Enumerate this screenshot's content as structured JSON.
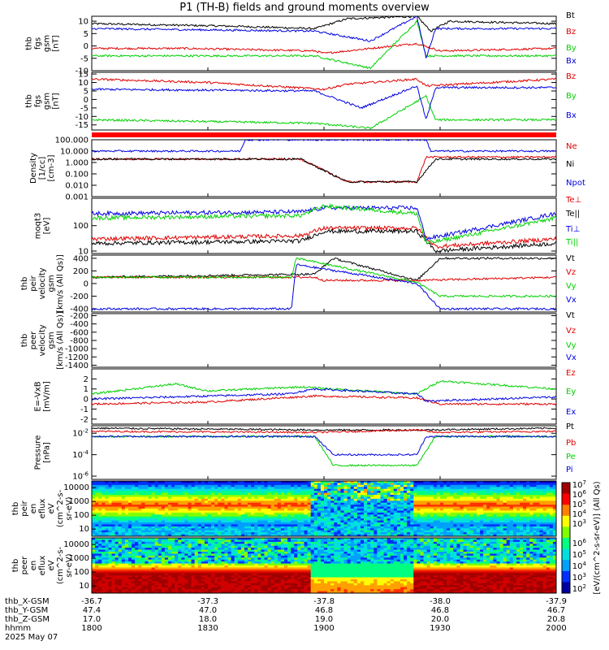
{
  "title": "P1 (TH-B) fields and ground moments overview",
  "date_label": "2025 May 07",
  "colors": {
    "black": "#000000",
    "red": "#e00000",
    "green": "#00d000",
    "blue": "#0000e0",
    "divider": "#ff0000"
  },
  "chart_data": [
    {
      "type": "line",
      "id": "fgs",
      "ylabel": [
        "thb",
        "fgs",
        "gsm",
        "[nT]"
      ],
      "ylim": [
        -10,
        12
      ],
      "yticks": [
        "10",
        "5",
        "0",
        "-5",
        "-10"
      ],
      "legend": [
        "Bt",
        "Bz",
        "By",
        "Bx"
      ],
      "series": [
        {
          "name": "Bt",
          "color": "black",
          "x": [
            0,
            0.3,
            0.48,
            0.55,
            0.7,
            0.73,
            0.77,
            1
          ],
          "values": [
            9,
            8,
            7,
            11,
            12,
            6,
            10,
            9
          ]
        },
        {
          "name": "Bz",
          "color": "red",
          "x": [
            0,
            0.2,
            0.48,
            0.5,
            0.7,
            0.75,
            1
          ],
          "values": [
            -1,
            -1,
            -2,
            -3,
            1,
            -2,
            -1
          ]
        },
        {
          "name": "By",
          "color": "green",
          "x": [
            0,
            0.48,
            0.6,
            0.7,
            0.72,
            1
          ],
          "values": [
            -4,
            -4,
            -9,
            10,
            -4,
            -4
          ]
        },
        {
          "name": "Bx",
          "color": "blue",
          "x": [
            0,
            0.48,
            0.6,
            0.7,
            0.72,
            0.74,
            1
          ],
          "values": [
            7,
            6,
            2,
            12,
            -5,
            7,
            7
          ]
        }
      ]
    },
    {
      "type": "line",
      "id": "fgs-noBt",
      "ylabel": [
        "thb",
        "fgs",
        "gsm",
        "[nT]"
      ],
      "ylim": [
        -18,
        16
      ],
      "yticks": [
        "15",
        "10",
        "5",
        "0",
        "-5",
        "-10",
        "-15"
      ],
      "legend": [
        "Bz",
        "By",
        "Bx"
      ],
      "series": [
        {
          "name": "Bz",
          "color": "red",
          "x": [
            0,
            0.25,
            0.5,
            0.55,
            0.7,
            0.72,
            1
          ],
          "values": [
            12,
            10,
            6,
            9,
            12,
            8,
            12
          ]
        },
        {
          "name": "By",
          "color": "green",
          "x": [
            0,
            0.48,
            0.6,
            0.72,
            0.74,
            1
          ],
          "values": [
            -12,
            -14,
            -17,
            2,
            -12,
            -12
          ]
        },
        {
          "name": "Bx",
          "color": "blue",
          "x": [
            0,
            0.48,
            0.58,
            0.7,
            0.72,
            0.74,
            1
          ],
          "values": [
            6,
            5,
            -5,
            8,
            -12,
            7,
            7
          ]
        }
      ]
    },
    {
      "type": "line",
      "id": "density",
      "ylabel": [
        "Density",
        "[1/cc]",
        "[cm-3]"
      ],
      "scale": "log",
      "ylim": [
        0.001,
        100
      ],
      "yticks": [
        "100.000",
        "10.000",
        "1.000",
        "0.100",
        "0.010",
        "0.001"
      ],
      "legend": [
        "Ne",
        "Ni",
        "Npot"
      ],
      "series": [
        {
          "name": "Ne",
          "color": "red",
          "x": [
            0,
            0.45,
            0.55,
            0.7,
            0.72,
            1
          ],
          "values": [
            2,
            2,
            0.02,
            0.02,
            3,
            3
          ]
        },
        {
          "name": "Ni",
          "color": "black",
          "x": [
            0,
            0.45,
            0.55,
            0.7,
            0.74,
            1
          ],
          "values": [
            2,
            2,
            0.02,
            0.02,
            2,
            2
          ]
        },
        {
          "name": "Npot",
          "color": "blue",
          "x": [
            0,
            0.32,
            0.33,
            0.72,
            0.73,
            1
          ],
          "values": [
            10,
            10,
            100,
            100,
            10,
            10
          ]
        }
      ]
    },
    {
      "type": "line",
      "id": "temperature",
      "ylabel": [
        "moqt3",
        "[eV]"
      ],
      "scale": "log",
      "ylim": [
        8,
        1200
      ],
      "yticks": [
        "100",
        "10"
      ],
      "legend": [
        "Te⊥",
        "Te||",
        "Ti⊥",
        "Ti||"
      ],
      "series": [
        {
          "name": "Te⊥",
          "color": "red",
          "x": [
            0,
            0.45,
            0.5,
            0.7,
            0.74,
            1
          ],
          "values": [
            30,
            40,
            80,
            80,
            15,
            30
          ]
        },
        {
          "name": "Te||",
          "color": "black",
          "x": [
            0,
            0.45,
            0.5,
            0.7,
            0.74,
            1
          ],
          "values": [
            20,
            25,
            60,
            60,
            10,
            20
          ]
        },
        {
          "name": "Ti⊥",
          "color": "blue",
          "x": [
            0,
            0.45,
            0.5,
            0.7,
            0.72,
            1
          ],
          "values": [
            300,
            350,
            500,
            500,
            30,
            300
          ]
        },
        {
          "name": "Ti||",
          "color": "green",
          "x": [
            0,
            0.45,
            0.5,
            0.7,
            0.72,
            1
          ],
          "values": [
            200,
            250,
            600,
            300,
            20,
            200
          ]
        }
      ]
    },
    {
      "type": "line",
      "id": "peir-velocity",
      "ylabel": [
        "thb",
        "peir",
        "velocity",
        "gsm",
        "[km/s (All Qs)]"
      ],
      "ylim": [
        -450,
        450
      ],
      "yticks": [
        "400",
        "200",
        "0",
        "-200",
        "-400"
      ],
      "legend": [
        "Vt",
        "Vz",
        "Vy",
        "Vx"
      ],
      "series": [
        {
          "name": "Vt",
          "color": "black",
          "x": [
            0,
            0.48,
            0.52,
            0.7,
            0.75,
            1
          ],
          "values": [
            100,
            150,
            400,
            50,
            400,
            400
          ]
        },
        {
          "name": "Vz",
          "color": "red",
          "x": [
            0,
            0.48,
            0.5,
            0.7,
            1
          ],
          "values": [
            100,
            100,
            50,
            50,
            100
          ]
        },
        {
          "name": "Vy",
          "color": "green",
          "x": [
            0,
            0.43,
            0.44,
            0.7,
            0.75,
            1
          ],
          "values": [
            100,
            100,
            400,
            20,
            -200,
            -200
          ]
        },
        {
          "name": "Vx",
          "color": "blue",
          "x": [
            0,
            0.43,
            0.44,
            0.7,
            0.75,
            1
          ],
          "values": [
            -400,
            -400,
            300,
            0,
            -400,
            -400
          ]
        }
      ]
    },
    {
      "type": "line",
      "id": "peer-velocity",
      "ylabel": [
        "thb",
        "peer",
        "velocity",
        "gsm",
        "[km/s (All Qs)]"
      ],
      "ylim": [
        -1450,
        -150
      ],
      "yticks": [
        "-200",
        "-400",
        "-600",
        "-800",
        "-1000",
        "-1200",
        "-1400"
      ],
      "legend": [
        "Vt",
        "Vz",
        "Vy",
        "Vx"
      ],
      "series": []
    },
    {
      "type": "line",
      "id": "efield",
      "ylabel": [
        "E=-VxB",
        "[mV/m]"
      ],
      "ylim": [
        -2.5,
        3
      ],
      "yticks": [
        "2",
        "1",
        "0",
        "-1",
        "-2"
      ],
      "legend": [
        "Ez",
        "Ey",
        "Ex"
      ],
      "series": [
        {
          "name": "Ez",
          "color": "red",
          "x": [
            0,
            0.25,
            0.48,
            0.7,
            0.75,
            1
          ],
          "values": [
            -0.5,
            -0.3,
            0.3,
            0.1,
            -0.5,
            -0.5
          ]
        },
        {
          "name": "Ey",
          "color": "green",
          "x": [
            0,
            0.18,
            0.25,
            0.45,
            0.7,
            0.75,
            1
          ],
          "values": [
            0.5,
            1.5,
            0.8,
            1.2,
            0.5,
            1.8,
            1.0
          ]
        },
        {
          "name": "Ex",
          "color": "blue",
          "x": [
            0,
            0.42,
            0.48,
            0.7,
            0.72,
            1
          ],
          "values": [
            0,
            0.5,
            1.0,
            0.5,
            -0.2,
            0.2
          ]
        }
      ]
    },
    {
      "type": "line",
      "id": "pressure",
      "ylabel": [
        "Pressure",
        "[nPa]"
      ],
      "scale": "log",
      "ylim": [
        5e-07,
        0.05
      ],
      "yticks": [
        "10^-2",
        "10^-4",
        "10^-6"
      ],
      "legend": [
        "Pt",
        "Pb",
        "Pe",
        "Pi"
      ],
      "series": [
        {
          "name": "Pt",
          "color": "black",
          "x": [
            0,
            0.5,
            0.7,
            1
          ],
          "values": [
            0.03,
            0.02,
            0.02,
            0.03
          ]
        },
        {
          "name": "Pb",
          "color": "red",
          "x": [
            0,
            0.48,
            0.7,
            0.74,
            1
          ],
          "values": [
            0.015,
            0.012,
            0.02,
            0.012,
            0.015
          ]
        },
        {
          "name": "Pe",
          "color": "green",
          "x": [
            0,
            0.48,
            0.52,
            0.7,
            0.74,
            1
          ],
          "values": [
            0.005,
            0.005,
            1e-05,
            1e-05,
            0.005,
            0.005
          ]
        },
        {
          "name": "Pi",
          "color": "blue",
          "x": [
            0,
            0.48,
            0.52,
            0.7,
            0.72,
            1
          ],
          "values": [
            0.005,
            0.005,
            0.0001,
            0.0001,
            0.005,
            0.005
          ]
        }
      ]
    },
    {
      "type": "heatmap",
      "id": "peir-eflux",
      "ylabel": [
        "thb",
        "peir",
        "en",
        "eflux",
        "eV",
        "(cm^2-s-",
        "sr-eV)"
      ],
      "scale": "log",
      "yticks": [
        "10000",
        "1000",
        "100",
        "10"
      ]
    },
    {
      "type": "heatmap",
      "id": "peer-eflux",
      "ylabel": [
        "thb",
        "peer",
        "en",
        "eflux",
        "eV",
        "(cm^2-s-",
        "sr-eV)"
      ],
      "scale": "log",
      "yticks": [
        "10000",
        "1000",
        "100",
        "10"
      ]
    }
  ],
  "colorbar": {
    "label": "[eV/(cm^2-s-sr-eV)] (All Qs)",
    "upper_ticks": [
      "10^7",
      "10^6",
      "10^5",
      "10^4",
      "10^3"
    ],
    "lower_ticks": [
      "10^6",
      "10^5",
      "10^4",
      "10^3",
      "10^2"
    ]
  },
  "xaxis": {
    "row_labels": [
      "thb_X-GSM",
      "thb_Y-GSM",
      "thb_Z-GSM",
      "hhmm"
    ],
    "columns": [
      [
        "-36.7",
        "47.4",
        "17.0",
        "1800"
      ],
      [
        "-37.3",
        "47.0",
        "18.0",
        "1830"
      ],
      [
        "-37.8",
        "46.8",
        "19.0",
        "1900"
      ],
      [
        "-38.0",
        "46.8",
        "20.0",
        "1930"
      ],
      [
        "-37.9",
        "46.7",
        "20.8",
        "2000"
      ]
    ]
  }
}
